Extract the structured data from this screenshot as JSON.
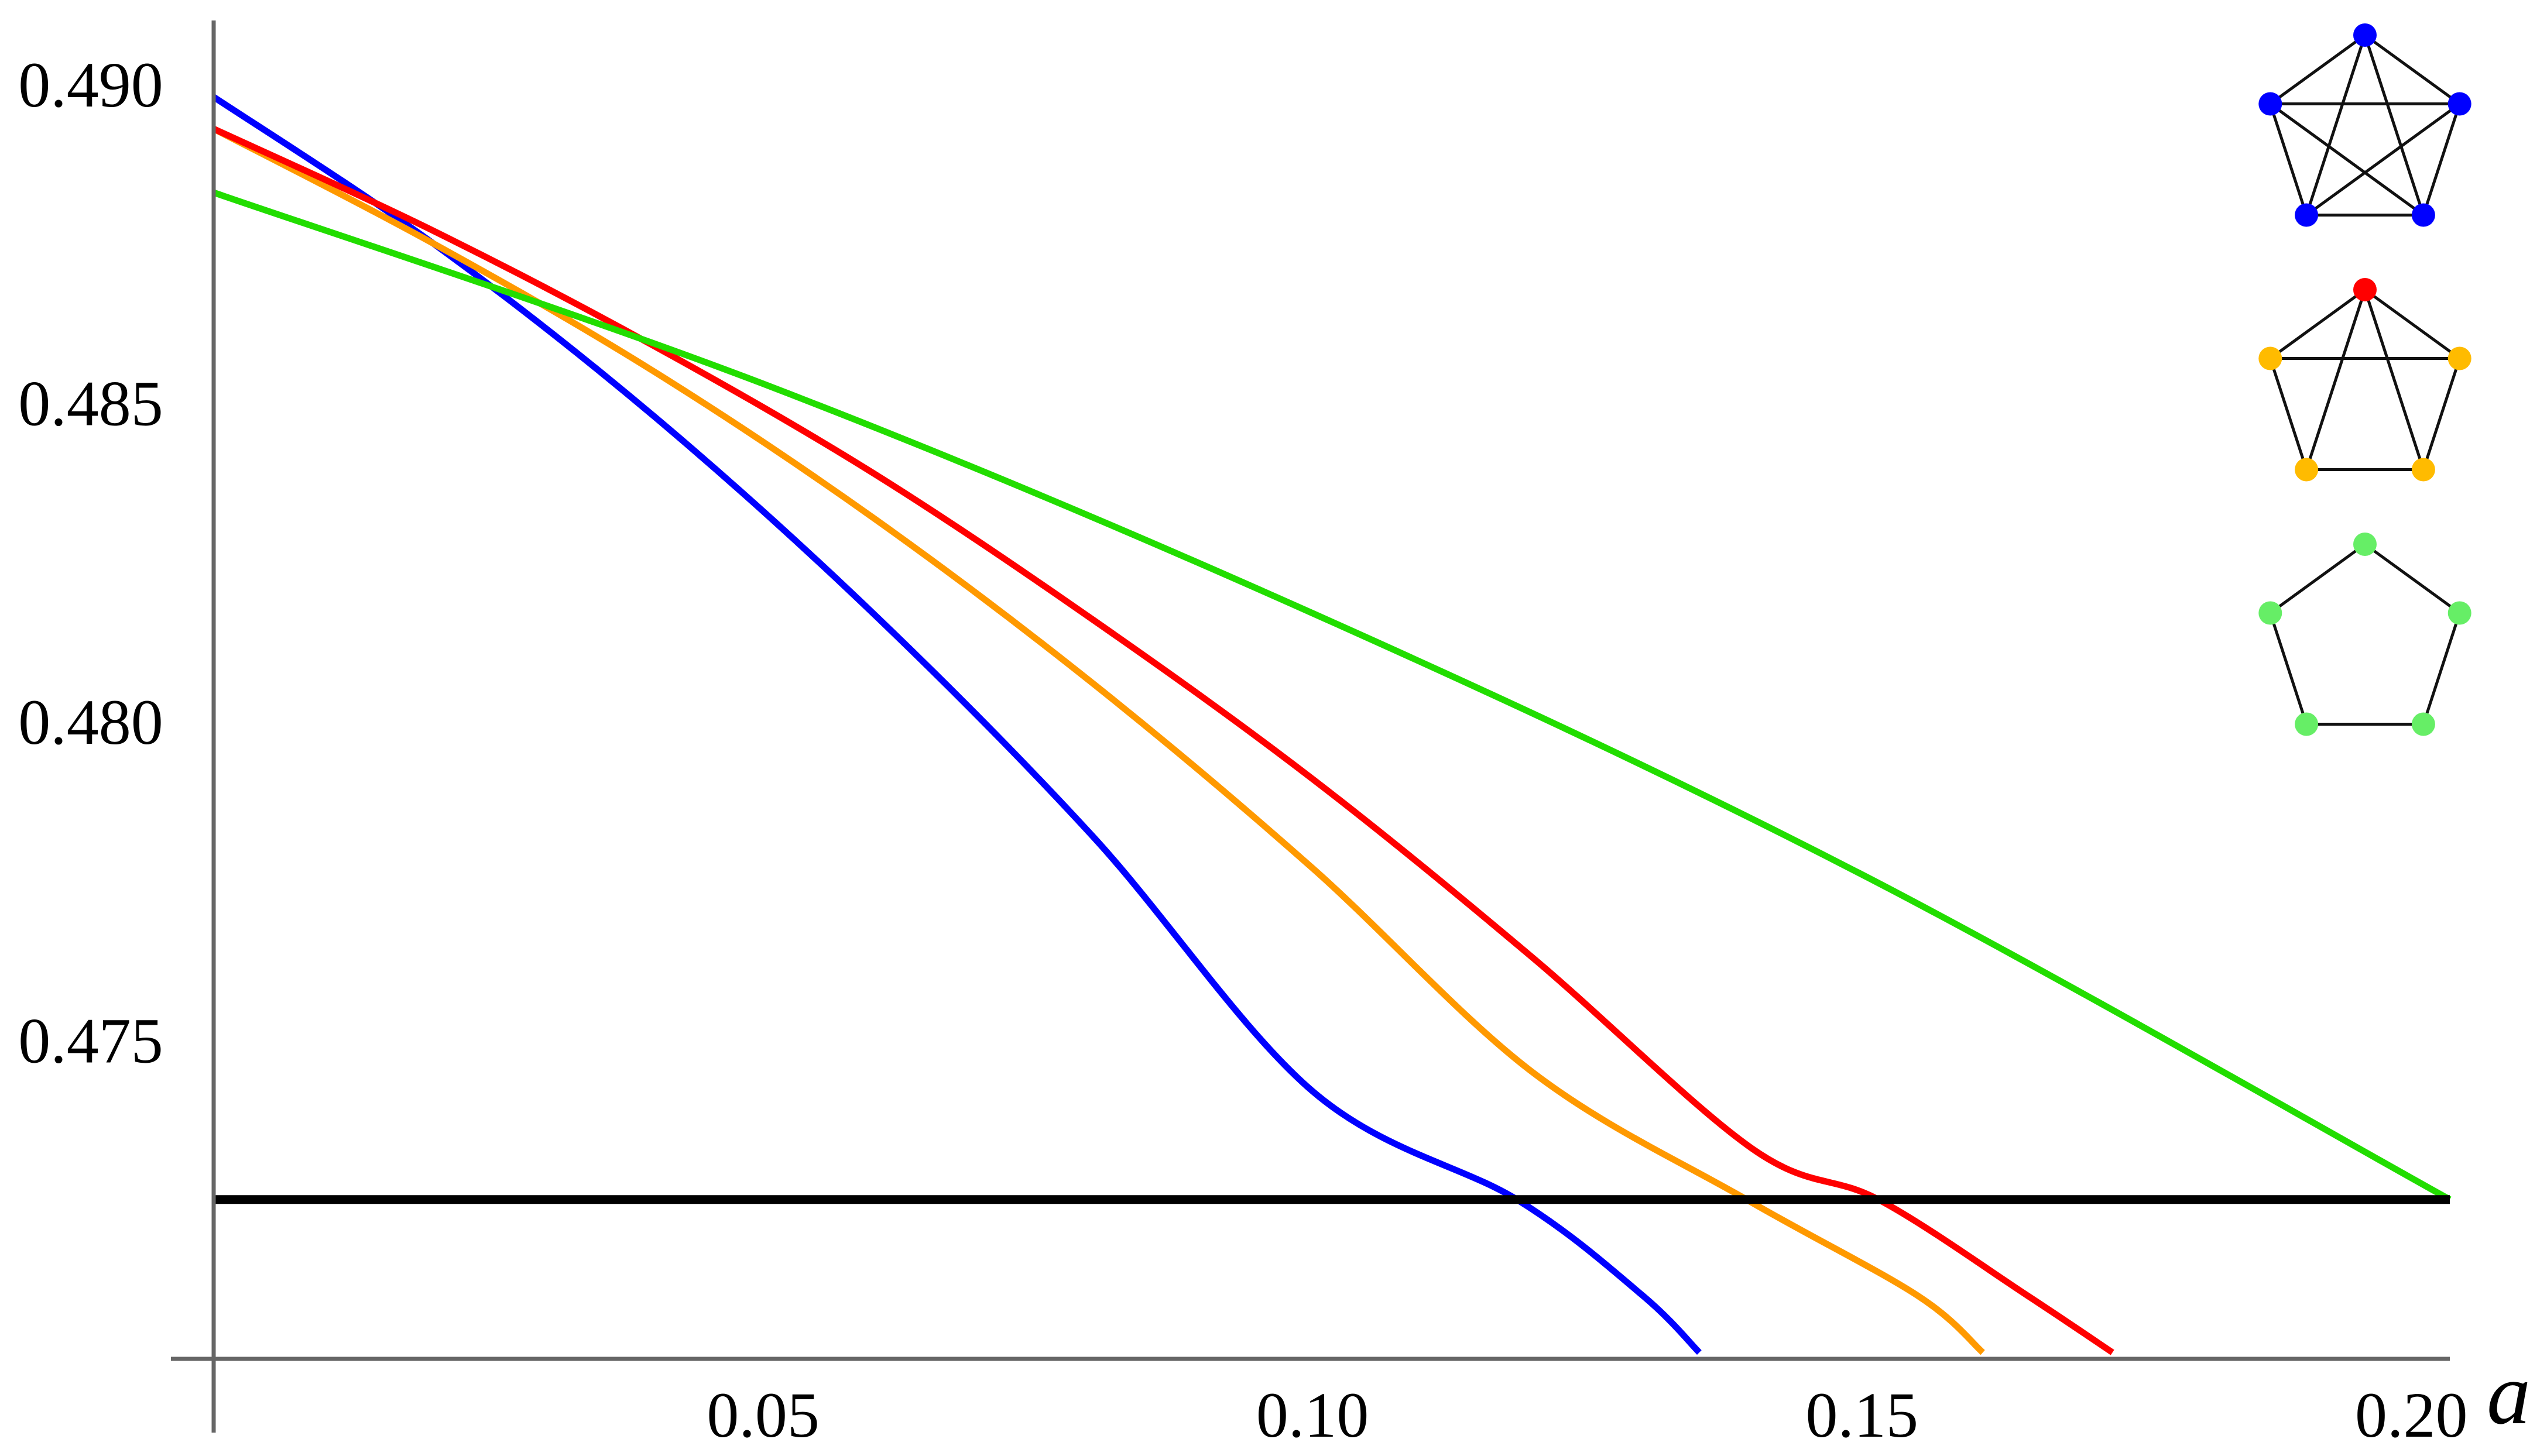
{
  "chart_data": {
    "type": "line",
    "xlabel": "a",
    "ylabel": "",
    "xlim": [
      0,
      0.2035
    ],
    "ylim": [
      0.47,
      0.491
    ],
    "x_ticks": [
      {
        "value": 0.05,
        "label": "0.05"
      },
      {
        "value": 0.1,
        "label": "0.10"
      },
      {
        "value": 0.15,
        "label": "0.15"
      },
      {
        "value": 0.2,
        "label": "0.20"
      }
    ],
    "y_ticks": [
      {
        "value": 0.49,
        "label": "0.490"
      },
      {
        "value": 0.485,
        "label": "0.485"
      },
      {
        "value": 0.48,
        "label": "0.480"
      },
      {
        "value": 0.475,
        "label": "0.475"
      }
    ],
    "grid": false,
    "series": [
      {
        "color": "#0000ff",
        "x": [
          0,
          0.02,
          0.04,
          0.06,
          0.08,
          0.1,
          0.1186,
          0.13,
          0.1352
        ],
        "y": [
          0.4898,
          0.4875,
          0.4848,
          0.4817,
          0.4782,
          0.4742,
          0.4725,
          0.471,
          0.4701
        ]
      },
      {
        "color": "#ff9900",
        "x": [
          0,
          0.02,
          0.04,
          0.06,
          0.08,
          0.1,
          0.12,
          0.1395,
          0.155,
          0.161
        ],
        "y": [
          0.4893,
          0.4875,
          0.4855,
          0.4832,
          0.4806,
          0.4777,
          0.4745,
          0.4725,
          0.471,
          0.4701
        ]
      },
      {
        "color": "#ff0000",
        "x": [
          0,
          0.02,
          0.04,
          0.06,
          0.08,
          0.1,
          0.12,
          0.14,
          0.1515,
          0.165,
          0.1728
        ],
        "y": [
          0.4893,
          0.4877,
          0.4859,
          0.4839,
          0.4816,
          0.4791,
          0.4763,
          0.4733,
          0.4725,
          0.471,
          0.4701
        ]
      },
      {
        "color": "#22dd00",
        "x": [
          0,
          0.05,
          0.1,
          0.15,
          0.2035
        ],
        "y": [
          0.4883,
          0.4853,
          0.4817,
          0.4776,
          0.4725
        ]
      },
      {
        "color": "#000000",
        "x": [
          0,
          0.2035
        ],
        "y": [
          0.4725,
          0.4725
        ]
      }
    ],
    "legend": {
      "placement": "top-right",
      "entries": [
        {
          "graph": "complete-K5",
          "vertex_colors": [
            "#0000ff",
            "#0000ff",
            "#0000ff",
            "#0000ff",
            "#0000ff"
          ]
        },
        {
          "graph": "K5-minus-one-edge",
          "vertex_colors": [
            "#ff0000",
            "#ffbb00",
            "#ffbb00",
            "#ffbb00",
            "#ffbb00"
          ]
        },
        {
          "graph": "cycle-C5",
          "vertex_colors": [
            "#66ee66",
            "#66ee66",
            "#66ee66",
            "#66ee66",
            "#66ee66"
          ]
        }
      ]
    }
  }
}
